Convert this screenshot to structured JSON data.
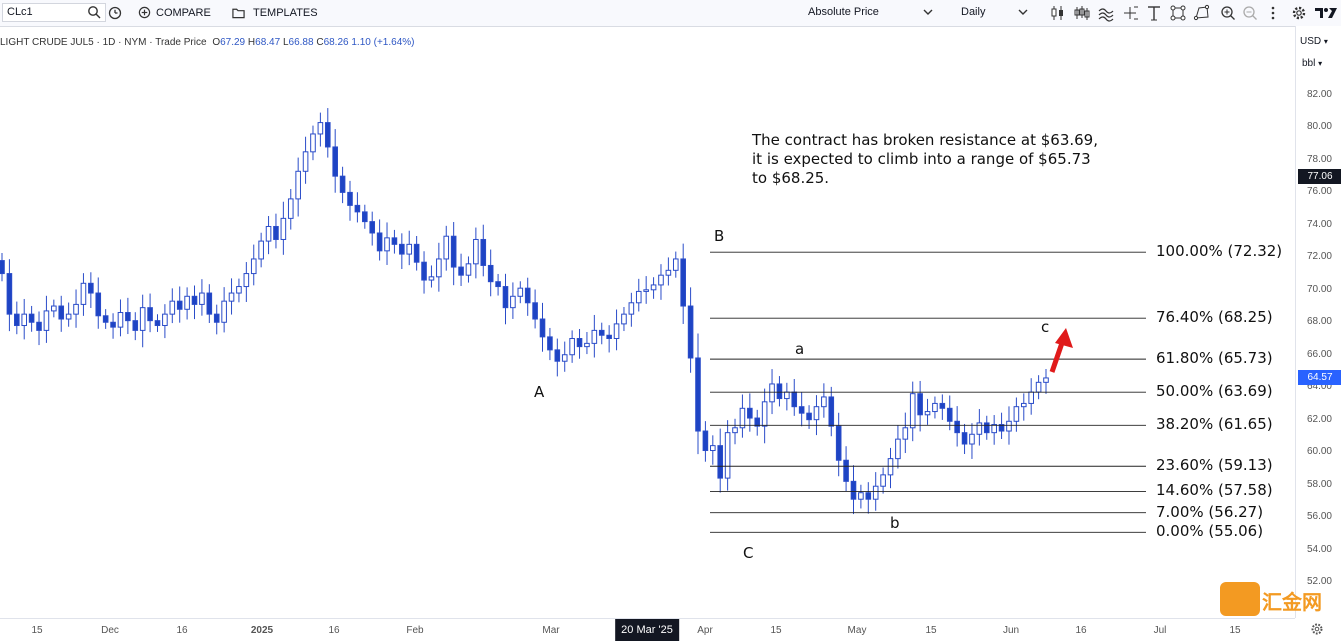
{
  "toolbar": {
    "symbol": "CLc1",
    "compare_label": "COMPARE",
    "templates_label": "TEMPLATES",
    "price_mode": "Absolute Price",
    "interval": "Daily"
  },
  "legend": {
    "title": "LIGHT CRUDE JUL5 · 1D · NYM · Trade Price",
    "open_label": "O",
    "open": "67.29",
    "high_label": "H",
    "high": "68.47",
    "low_label": "L",
    "low": "66.88",
    "close_label": "C",
    "close": "68.26",
    "change": "1.10 (+1.64%)"
  },
  "axis": {
    "currency": "USD",
    "unit": "bbl",
    "last_price_tag": "64.57",
    "crosshair_price_tag": "77.06",
    "crosshair_date_tag": "20 Mar '25"
  },
  "annotation": {
    "line1": "The contract has broken resistance at $63.69,",
    "line2": "it is expected to climb into a range of $65.73",
    "line3": "to $68.25."
  },
  "waves": {
    "A": "A",
    "B": "B",
    "C": "C",
    "a": "a",
    "b": "b",
    "c": "c"
  },
  "fib_levels": [
    {
      "label": "100.00% (72.32)",
      "price": 72.32
    },
    {
      "label": "76.40% (68.25)",
      "price": 68.25
    },
    {
      "label": "61.80% (65.73)",
      "price": 65.73
    },
    {
      "label": "50.00% (63.69)",
      "price": 63.69
    },
    {
      "label": "38.20% (61.65)",
      "price": 61.65
    },
    {
      "label": "23.60% (59.13)",
      "price": 59.13
    },
    {
      "label": "14.60% (57.58)",
      "price": 57.58
    },
    {
      "label": "7.00% (56.27)",
      "price": 56.27
    },
    {
      "label": "0.00% (55.06)",
      "price": 55.06
    }
  ],
  "chart_data": {
    "type": "candlestick",
    "y_ticks": [
      "82.00",
      "80.00",
      "78.00",
      "76.00",
      "74.00",
      "72.00",
      "70.00",
      "68.00",
      "66.00",
      "64.00",
      "62.00",
      "60.00",
      "58.00",
      "56.00",
      "54.00",
      "52.00"
    ],
    "x_ticks": [
      "15",
      "Dec",
      "16",
      "2025",
      "16",
      "Feb",
      "Mar",
      "20 Mar '25",
      "Apr",
      "15",
      "May",
      "15",
      "Jun",
      "16",
      "Jul",
      "15"
    ],
    "ylim": [
      52,
      82
    ],
    "closes": [
      71.0,
      68.5,
      67.8,
      68.5,
      68.0,
      67.5,
      68.7,
      69.0,
      68.2,
      68.5,
      69.1,
      70.4,
      69.8,
      68.4,
      68.0,
      67.7,
      68.6,
      68.1,
      67.5,
      68.9,
      68.1,
      67.8,
      68.5,
      69.3,
      68.8,
      69.6,
      69.1,
      69.8,
      68.5,
      68.0,
      69.3,
      69.8,
      70.2,
      71.0,
      71.9,
      73.0,
      73.9,
      73.1,
      74.4,
      75.6,
      77.3,
      78.5,
      79.6,
      80.3,
      78.8,
      77.0,
      76.0,
      75.2,
      74.8,
      74.2,
      73.5,
      72.4,
      73.2,
      72.8,
      72.2,
      72.8,
      71.7,
      70.6,
      70.8,
      71.9,
      73.3,
      71.4,
      70.9,
      71.6,
      73.1,
      71.5,
      70.5,
      70.2,
      68.9,
      69.6,
      70.1,
      69.2,
      68.2,
      67.1,
      66.3,
      65.6,
      66.0,
      67.0,
      66.5,
      66.7,
      67.5,
      67.2,
      67.0,
      67.9,
      68.5,
      69.2,
      69.9,
      70.0,
      70.3,
      70.9,
      71.2,
      71.9,
      69.0,
      65.8,
      61.3,
      60.1,
      60.4,
      58.4,
      61.2,
      61.5,
      62.7,
      62.1,
      61.6,
      63.1,
      64.2,
      63.3,
      63.7,
      62.8,
      62.4,
      62.0,
      62.8,
      63.4,
      61.6,
      59.5,
      58.2,
      57.1,
      57.5,
      57.1,
      57.9,
      58.6,
      59.6,
      60.8,
      61.5,
      63.6,
      62.3,
      62.5,
      63.0,
      62.7,
      61.9,
      61.2,
      60.5,
      61.1,
      61.8,
      61.2,
      61.7,
      61.3,
      61.9,
      62.8,
      63.0,
      63.7,
      64.3,
      64.57
    ]
  }
}
